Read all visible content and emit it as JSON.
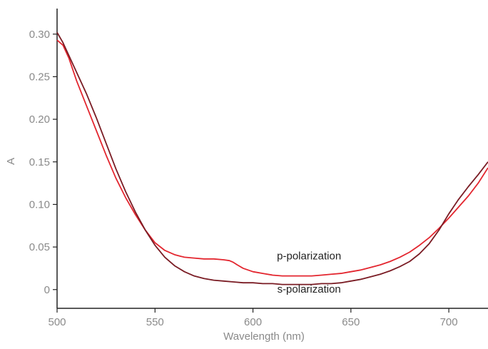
{
  "chart_data": {
    "type": "line",
    "xlabel": "Wavelength (nm)",
    "ylabel": "A",
    "xlim": [
      500,
      720
    ],
    "ylim": [
      -0.022,
      0.33
    ],
    "x_ticks": [
      500,
      550,
      600,
      650,
      700
    ],
    "x_tick_labels": [
      "500",
      "550",
      "600",
      "650",
      "700"
    ],
    "y_ticks": [
      0,
      0.05,
      0.1,
      0.15,
      0.2,
      0.25,
      0.3
    ],
    "y_tick_labels": [
      "0",
      "0.05",
      "0.10",
      "0.15",
      "0.20",
      "0.25",
      "0.30"
    ],
    "grid": false,
    "series": [
      {
        "name": "p-polarization",
        "color": "#e3262f",
        "x": [
          500,
          503,
          506,
          510,
          515,
          520,
          525,
          530,
          535,
          540,
          545,
          550,
          555,
          560,
          565,
          570,
          575,
          580,
          585,
          588,
          590,
          592,
          595,
          600,
          605,
          610,
          615,
          620,
          625,
          630,
          635,
          640,
          645,
          650,
          655,
          660,
          665,
          670,
          675,
          680,
          685,
          690,
          695,
          700,
          705,
          710,
          715,
          720
        ],
        "y": [
          0.293,
          0.287,
          0.272,
          0.245,
          0.216,
          0.187,
          0.158,
          0.131,
          0.108,
          0.088,
          0.07,
          0.055,
          0.046,
          0.041,
          0.038,
          0.037,
          0.036,
          0.036,
          0.035,
          0.034,
          0.032,
          0.029,
          0.025,
          0.021,
          0.019,
          0.017,
          0.016,
          0.016,
          0.016,
          0.016,
          0.017,
          0.018,
          0.019,
          0.021,
          0.023,
          0.026,
          0.029,
          0.033,
          0.038,
          0.044,
          0.052,
          0.061,
          0.072,
          0.084,
          0.097,
          0.11,
          0.125,
          0.143
        ]
      },
      {
        "name": "s-polarization",
        "color": "#7a1c24",
        "x": [
          500,
          503,
          506,
          510,
          515,
          520,
          525,
          530,
          535,
          540,
          545,
          550,
          555,
          560,
          565,
          570,
          575,
          580,
          585,
          590,
          595,
          600,
          605,
          610,
          615,
          620,
          625,
          630,
          635,
          640,
          645,
          650,
          655,
          660,
          665,
          670,
          675,
          680,
          685,
          690,
          695,
          700,
          705,
          710,
          715,
          720
        ],
        "y": [
          0.302,
          0.29,
          0.275,
          0.255,
          0.23,
          0.202,
          0.172,
          0.142,
          0.115,
          0.091,
          0.07,
          0.052,
          0.038,
          0.028,
          0.021,
          0.016,
          0.013,
          0.011,
          0.01,
          0.009,
          0.008,
          0.008,
          0.007,
          0.007,
          0.006,
          0.006,
          0.006,
          0.006,
          0.007,
          0.007,
          0.008,
          0.01,
          0.012,
          0.015,
          0.018,
          0.022,
          0.027,
          0.033,
          0.042,
          0.054,
          0.07,
          0.089,
          0.106,
          0.121,
          0.135,
          0.15
        ]
      }
    ],
    "annotations": [
      {
        "text": "p-polarization",
        "x": 625,
        "y": 0.033
      },
      {
        "text": "s-polarization",
        "x": 625,
        "y": -0.006
      }
    ]
  }
}
